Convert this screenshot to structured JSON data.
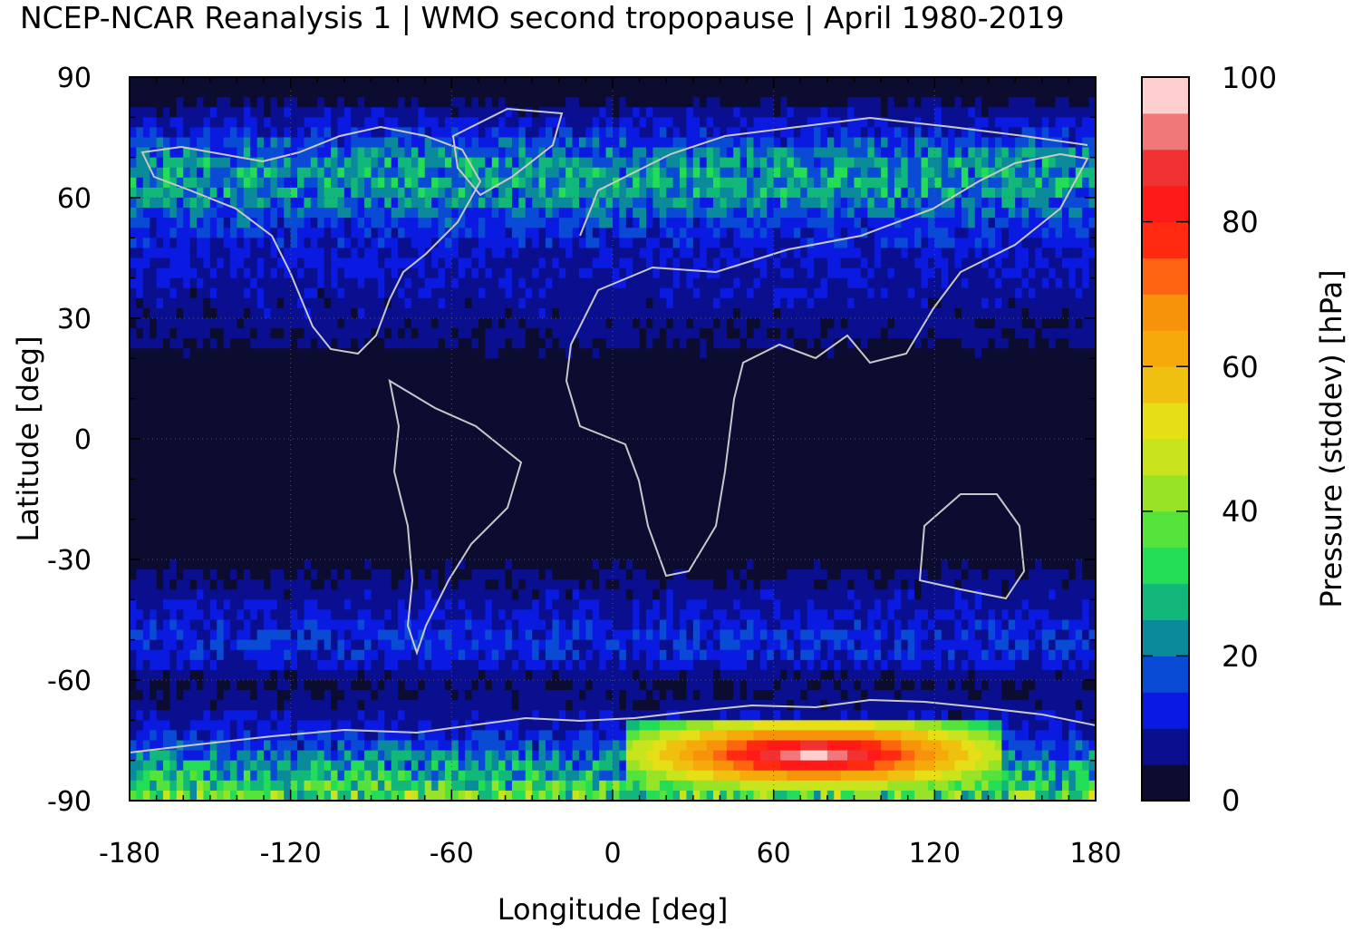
{
  "chart_data": {
    "type": "heatmap",
    "title": "NCEP-NCAR Reanalysis 1 | WMO second tropopause | April 1980-2019",
    "xlabel": "Longitude [deg]",
    "ylabel": "Latitude [deg]",
    "xlim": [
      -180,
      180
    ],
    "ylim": [
      -90,
      90
    ],
    "xticks": [
      "-180",
      "-120",
      "-60",
      "0",
      "60",
      "120",
      "180"
    ],
    "yticks": [
      "90",
      "60",
      "30",
      "0",
      "-30",
      "-60",
      "-90"
    ],
    "grid": "dotted",
    "colorbar": {
      "label": "Pressure (stddev) [hPa]",
      "range": [
        0,
        100
      ],
      "ticks": [
        "0",
        "20",
        "40",
        "60",
        "80",
        "100"
      ],
      "colors": [
        "#0c0c30",
        "#0a0f8f",
        "#0a1ae0",
        "#0a4bd6",
        "#0a8a9a",
        "#11b87a",
        "#22dd55",
        "#55e23a",
        "#99e326",
        "#c8e41c",
        "#e6de16",
        "#f0c010",
        "#f5a90a",
        "#f7930a",
        "#ff6410",
        "#ff2a10",
        "#ff1a1a",
        "#f03232",
        "#f07878",
        "#ffcfcf"
      ]
    },
    "lat_profile": {
      "lat": [
        -90,
        -85,
        -80,
        -75,
        -70,
        -65,
        -60,
        -55,
        -50,
        -45,
        -40,
        -35,
        -30,
        -20,
        -10,
        0,
        10,
        20,
        25,
        30,
        35,
        40,
        45,
        50,
        55,
        60,
        65,
        70,
        75,
        80,
        85,
        90
      ],
      "stddev": [
        38,
        30,
        22,
        14,
        9,
        6,
        5,
        12,
        14,
        11,
        8,
        6,
        3,
        2,
        2,
        2,
        2,
        3,
        6,
        7,
        8,
        9,
        10,
        12,
        16,
        22,
        24,
        22,
        14,
        9,
        3,
        2
      ]
    },
    "antarctic_maximum": {
      "lon_range": [
        5,
        145
      ],
      "lat_range": [
        -87,
        -70
      ],
      "max_stddev": 100
    }
  }
}
